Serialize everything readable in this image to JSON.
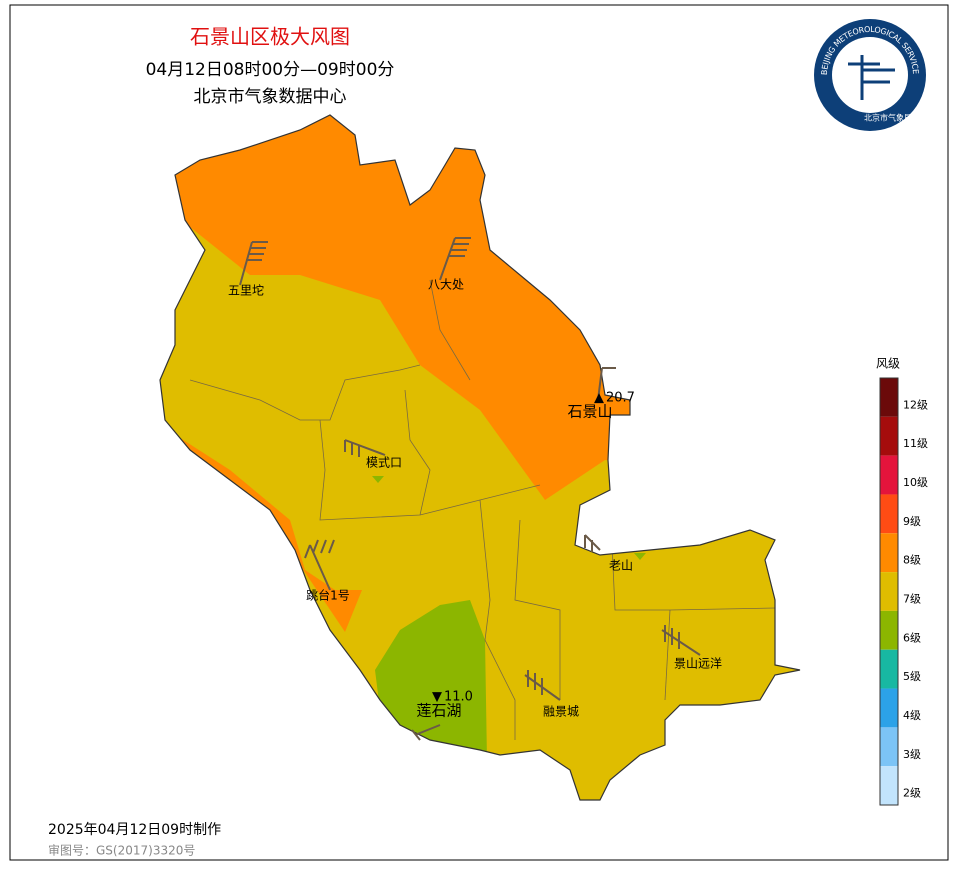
{
  "header": {
    "title": "石景山区极大风图",
    "time": "04月12日08时00分—09时00分",
    "source": "北京市气象数据中心"
  },
  "logo": {
    "ring_text": "BEIJING METEOROLOGICAL SERVICE",
    "name": "北京市气象局"
  },
  "stations": [
    {
      "name": "五里坨"
    },
    {
      "name": "八大处"
    },
    {
      "name": "石景山"
    },
    {
      "name": "模式口"
    },
    {
      "name": "老山"
    },
    {
      "name": "跳台1号"
    },
    {
      "name": "景山远洋"
    },
    {
      "name": "融景城"
    },
    {
      "name": "莲石湖"
    }
  ],
  "extremes": {
    "max": "20.7",
    "min": "11.0"
  },
  "legend": {
    "title": "风级",
    "levels": [
      {
        "label": "12级",
        "color": "#6b0a0a"
      },
      {
        "label": "11级",
        "color": "#a50c0c"
      },
      {
        "label": "10级",
        "color": "#e4143c"
      },
      {
        "label": "9级",
        "color": "#ff4c14"
      },
      {
        "label": "8级",
        "color": "#ff8a00"
      },
      {
        "label": "7级",
        "color": "#dfbd00"
      },
      {
        "label": "6级",
        "color": "#8cb600"
      },
      {
        "label": "5级",
        "color": "#18b8a2"
      },
      {
        "label": "4级",
        "color": "#2ca2e8"
      },
      {
        "label": "3级",
        "color": "#7cc4f6"
      },
      {
        "label": "2级",
        "color": "#c2e4fc"
      }
    ]
  },
  "footer": {
    "made": "2025年04月12日09时制作",
    "review": "审图号：GS(2017)3320号"
  }
}
